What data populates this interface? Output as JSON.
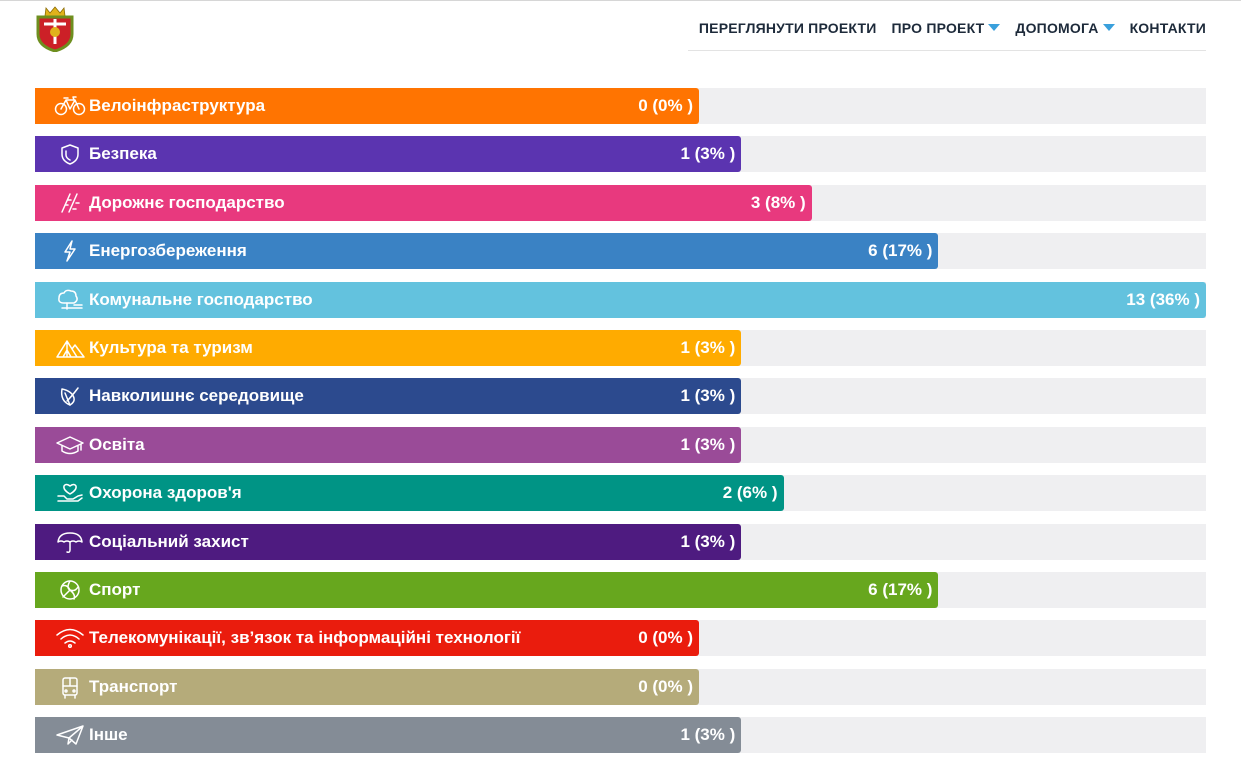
{
  "header": {
    "nav": [
      {
        "label": "ПЕРЕГЛЯНУТИ ПРОЕКТИ",
        "dropdown": false
      },
      {
        "label": "ПРО ПРОЕКТ",
        "dropdown": true
      },
      {
        "label": "ДОПОМОГА",
        "dropdown": true
      },
      {
        "label": "КОНТАКТИ",
        "dropdown": false
      }
    ],
    "accent_color": "#3aa0dc"
  },
  "categories": [
    {
      "label": "Велоінфраструктура",
      "count": "0 (0% )",
      "percent": 0,
      "color": "#ff7401",
      "icon": "bicycle-icon"
    },
    {
      "label": "Безпека",
      "count": "1 (3% )",
      "percent": 3,
      "color": "#5b34b0",
      "icon": "shield-icon"
    },
    {
      "label": "Дорожнє господарство",
      "count": "3 (8% )",
      "percent": 8,
      "color": "#e8397e",
      "icon": "road-icon"
    },
    {
      "label": "Енергозбереження",
      "count": "6 (17% )",
      "percent": 17,
      "color": "#3a82c4",
      "icon": "lightning-icon"
    },
    {
      "label": "Комунальне господарство",
      "count": "13 (36% )",
      "percent": 36,
      "color": "#63c2de",
      "icon": "park-icon"
    },
    {
      "label": "Культура та туризм",
      "count": "1 (3% )",
      "percent": 3,
      "color": "#ffab00",
      "icon": "tent-icon"
    },
    {
      "label": "Навколишнє середовище",
      "count": "1 (3% )",
      "percent": 3,
      "color": "#2c4a8e",
      "icon": "leaf-icon"
    },
    {
      "label": "Освіта",
      "count": "1 (3% )",
      "percent": 3,
      "color": "#9a4b98",
      "icon": "graduation-cap-icon"
    },
    {
      "label": "Охорона здоров'я",
      "count": "2 (6% )",
      "percent": 6,
      "color": "#009485",
      "icon": "heart-hand-icon"
    },
    {
      "label": "Соціальний захист",
      "count": "1 (3% )",
      "percent": 3,
      "color": "#4e1b80",
      "icon": "umbrella-icon"
    },
    {
      "label": "Спорт",
      "count": "6 (17% )",
      "percent": 17,
      "color": "#67a71e",
      "icon": "volleyball-icon"
    },
    {
      "label": "Телекомунікації, зв’язок та інформаційні технології",
      "count": "0 (0% )",
      "percent": 0,
      "color": "#ea1c0d",
      "icon": "wifi-icon"
    },
    {
      "label": "Транспорт",
      "count": "0 (0% )",
      "percent": 0,
      "color": "#b5ab7a",
      "icon": "bus-icon"
    },
    {
      "label": "Інше",
      "count": "1 (3% )",
      "percent": 3,
      "color": "#848c96",
      "icon": "paper-plane-icon"
    }
  ]
}
